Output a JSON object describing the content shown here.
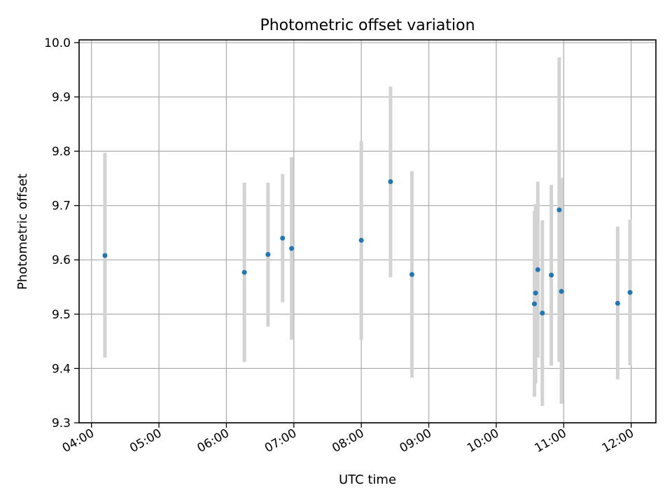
{
  "chart_data": {
    "type": "scatter",
    "title": "Photometric offset variation",
    "xlabel": "UTC time",
    "ylabel": "Photometric offset",
    "x_tick_labels": [
      "04:00",
      "05:00",
      "06:00",
      "07:00",
      "08:00",
      "09:00",
      "10:00",
      "11:00",
      "12:00"
    ],
    "y_tick_labels": [
      "9.3",
      "9.4",
      "9.5",
      "9.6",
      "9.7",
      "9.8",
      "9.9",
      "10.0"
    ],
    "xlim": [
      "03:49",
      "12:22"
    ],
    "ylim": [
      9.3,
      10.005
    ],
    "grid": true,
    "point_color": "#1f77b4",
    "errorbar_color": "#d3d3d3",
    "points": [
      {
        "x": "04:12",
        "y": 9.608,
        "ylo": 9.42,
        "yhi": 9.797
      },
      {
        "x": "06:16",
        "y": 9.577,
        "ylo": 9.412,
        "yhi": 9.742
      },
      {
        "x": "06:37",
        "y": 9.61,
        "ylo": 9.477,
        "yhi": 9.742
      },
      {
        "x": "06:50",
        "y": 9.64,
        "ylo": 9.522,
        "yhi": 9.758
      },
      {
        "x": "06:58",
        "y": 9.621,
        "ylo": 9.453,
        "yhi": 9.789
      },
      {
        "x": "08:00",
        "y": 9.636,
        "ylo": 9.453,
        "yhi": 9.819
      },
      {
        "x": "08:26",
        "y": 9.744,
        "ylo": 9.568,
        "yhi": 9.919
      },
      {
        "x": "08:45",
        "y": 9.573,
        "ylo": 9.383,
        "yhi": 9.763
      },
      {
        "x": "10:34",
        "y": 9.519,
        "ylo": 9.348,
        "yhi": 9.69
      },
      {
        "x": "10:35",
        "y": 9.539,
        "ylo": 9.372,
        "yhi": 9.703
      },
      {
        "x": "10:37",
        "y": 9.582,
        "ylo": 9.42,
        "yhi": 9.744
      },
      {
        "x": "10:41",
        "y": 9.502,
        "ylo": 9.331,
        "yhi": 9.673
      },
      {
        "x": "10:49",
        "y": 9.572,
        "ylo": 9.405,
        "yhi": 9.738
      },
      {
        "x": "10:56",
        "y": 9.692,
        "ylo": 9.412,
        "yhi": 9.973
      },
      {
        "x": "10:58",
        "y": 9.542,
        "ylo": 9.335,
        "yhi": 9.751
      },
      {
        "x": "11:48",
        "y": 9.52,
        "ylo": 9.38,
        "yhi": 9.661
      },
      {
        "x": "11:59",
        "y": 9.54,
        "ylo": 9.406,
        "yhi": 9.674
      }
    ]
  }
}
